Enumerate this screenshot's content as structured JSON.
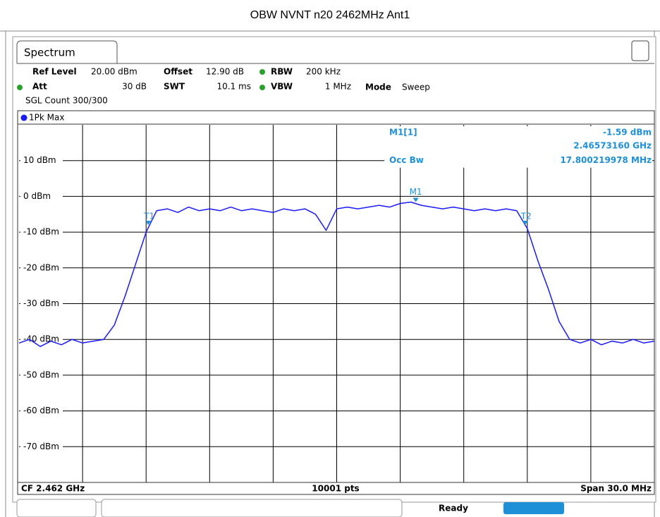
{
  "title": "OBW NVNT n20 2462MHz Ant1",
  "tab": "Spectrum",
  "settings": {
    "ref_level_label": "Ref Level",
    "ref_level": "20.00 dBm",
    "offset_label": "Offset",
    "offset": "12.90 dB",
    "rbw_label": "RBW",
    "rbw": "200 kHz",
    "att_label": "Att",
    "att": "30 dB",
    "swt_label": "SWT",
    "swt": "10.1 ms",
    "vbw_label": "VBW",
    "vbw": "1 MHz",
    "mode_label": "Mode",
    "mode": "Sweep",
    "sgl_count": "SGL Count 300/300"
  },
  "chart_data": {
    "type": "line",
    "trace_name": "1Pk Max",
    "color": "#1a1aff",
    "xlim": [
      2.447,
      2.477
    ],
    "ylim": [
      -80,
      20
    ],
    "yticks": [
      {
        "value": 10,
        "label": "10 dBm"
      },
      {
        "value": 0,
        "label": "0 dBm"
      },
      {
        "value": -10,
        "label": "-10 dBm"
      },
      {
        "value": -20,
        "label": "-20 dBm"
      },
      {
        "value": -30,
        "label": "-30 dBm"
      },
      {
        "value": -40,
        "label": "-40 dBm"
      },
      {
        "value": -50,
        "label": "-50 dBm"
      },
      {
        "value": -60,
        "label": "-60 dBm"
      },
      {
        "value": -70,
        "label": "-70 dBm"
      }
    ],
    "x": [
      2.447,
      2.4475,
      2.448,
      2.4485,
      2.449,
      2.4495,
      2.45,
      2.4505,
      2.451,
      2.4515,
      2.452,
      2.4525,
      2.453,
      2.4535,
      2.454,
      2.4545,
      2.455,
      2.4555,
      2.456,
      2.4565,
      2.457,
      2.4575,
      2.458,
      2.4585,
      2.459,
      2.4595,
      2.46,
      2.4605,
      2.461,
      2.4615,
      2.462,
      2.4625,
      2.463,
      2.4635,
      2.464,
      2.4645,
      2.465,
      2.4655,
      2.466,
      2.4665,
      2.467,
      2.4675,
      2.468,
      2.4685,
      2.469,
      2.4695,
      2.47,
      2.4705,
      2.471,
      2.4715,
      2.472,
      2.4725,
      2.473,
      2.4735,
      2.474,
      2.4745,
      2.475,
      2.4755,
      2.476,
      2.4765,
      2.477
    ],
    "values": [
      -41,
      -40,
      -42,
      -40.5,
      -41.5,
      -40,
      -41,
      -40.5,
      -40,
      -36,
      -28,
      -19,
      -10,
      -4,
      -3.5,
      -4.5,
      -3,
      -4,
      -3.5,
      -4,
      -3,
      -4,
      -3.5,
      -4,
      -4.5,
      -3.5,
      -4,
      -3.5,
      -5,
      -9.5,
      -3.5,
      -3,
      -3.5,
      -3,
      -2.5,
      -3,
      -2,
      -1.59,
      -2.5,
      -3,
      -3.5,
      -3,
      -3.5,
      -4,
      -3.5,
      -4,
      -3.5,
      -4,
      -9,
      -18,
      -26,
      -35,
      -40,
      -41,
      -40,
      -41.5,
      -40.5,
      -41,
      -40,
      -41,
      -40.5
    ],
    "marker": {
      "name": "M1",
      "heading": "M1[1]",
      "x": 2.4657316,
      "value": -1.59,
      "value_label": "-1.59 dBm",
      "x_label": "2.46573160 GHz"
    },
    "occ_bw": {
      "label": "Occ Bw",
      "value_label": "17.800219978 MHz",
      "markers": [
        {
          "name": "T1",
          "x": 2.4531,
          "value": -8
        },
        {
          "name": "T2",
          "x": 2.4709,
          "value": -8
        }
      ]
    }
  },
  "footer": {
    "center_freq": "CF 2.462 GHz",
    "points": "10001 pts",
    "span": "Span 30.0 MHz"
  },
  "status": "Ready"
}
